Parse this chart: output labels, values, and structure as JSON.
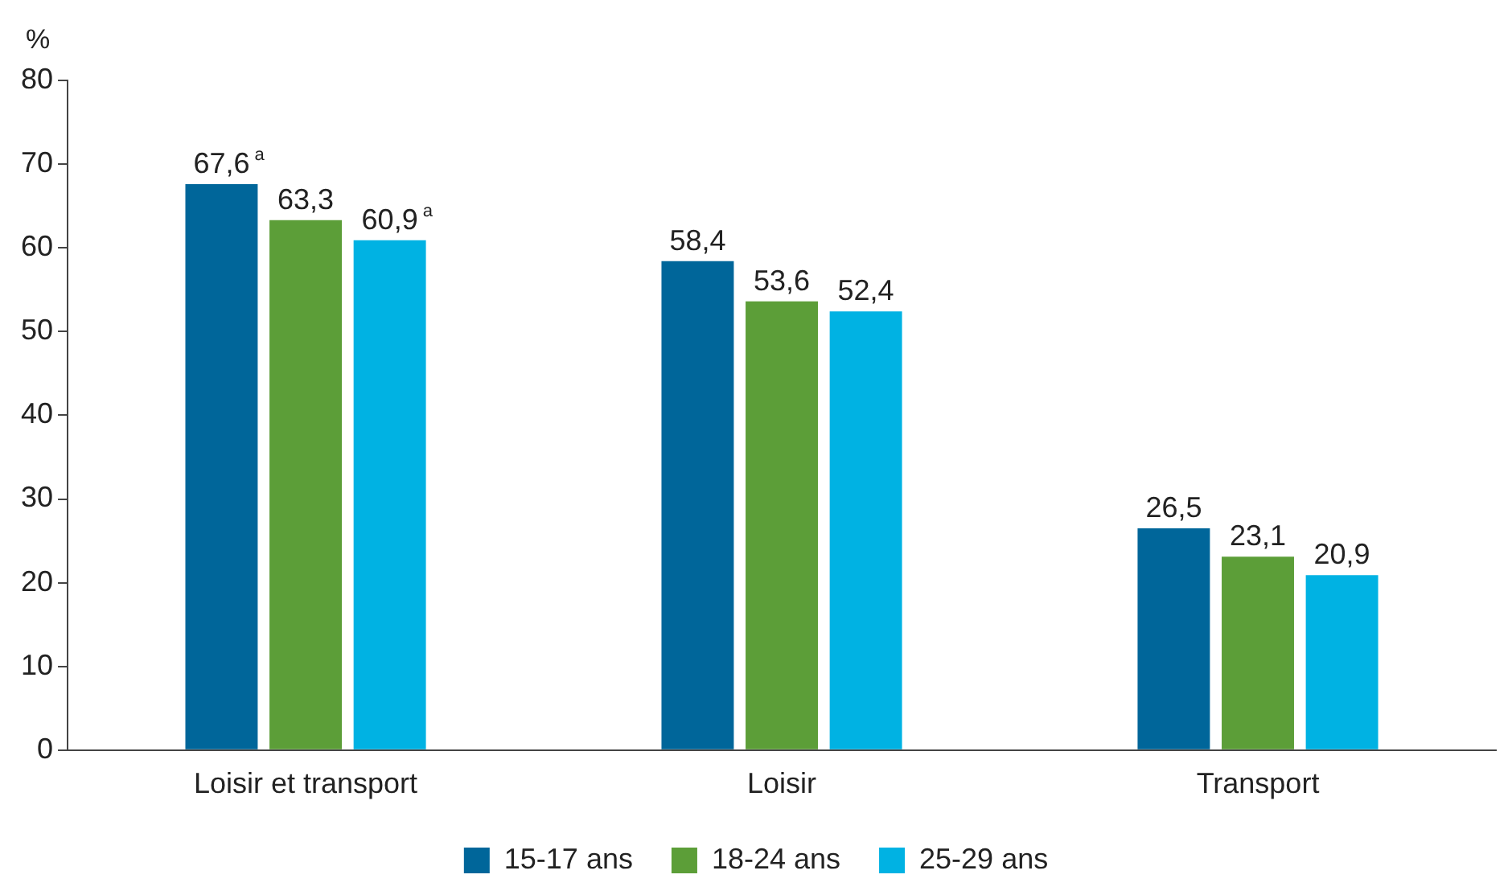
{
  "chart_data": {
    "type": "bar",
    "ylabel": "%",
    "categories": [
      "Loisir et transport",
      "Loisir",
      "Transport"
    ],
    "series": [
      {
        "name": "15-17 ans",
        "color": "#00669a",
        "values": [
          67.6,
          58.4,
          26.5
        ],
        "value_labels": [
          "67,6$^{a}$",
          "58,4",
          "26,5"
        ]
      },
      {
        "name": "18-24 ans",
        "color": "#5c9e38",
        "values": [
          63.3,
          53.6,
          23.1
        ],
        "value_labels": [
          "63,3",
          "53,6",
          "23,1"
        ]
      },
      {
        "name": "25-29 ans",
        "color": "#00b2e3",
        "values": [
          60.9,
          52.4,
          20.9
        ],
        "value_labels": [
          "60,9$^{a}$",
          "52,4",
          "20,9"
        ]
      }
    ],
    "ylim": [
      0,
      80
    ],
    "yticks": [
      0,
      10,
      20,
      30,
      40,
      50,
      60,
      70,
      80
    ],
    "grid": false,
    "legend": "bottom"
  }
}
